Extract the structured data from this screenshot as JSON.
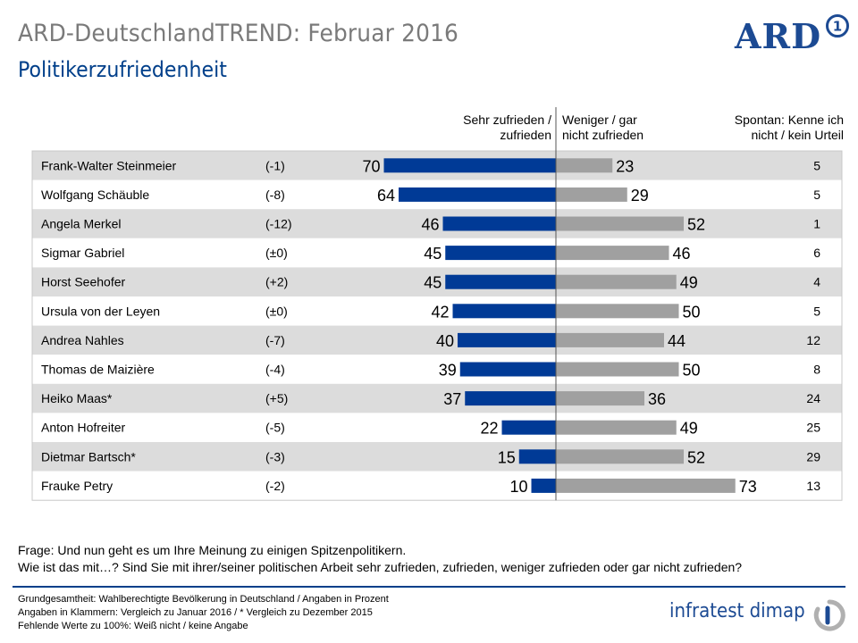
{
  "header": {
    "title": "ARD-DeutschlandTREND: Februar 2016",
    "subtitle": "Politikerzufriedenheit",
    "logo_text": "ARD",
    "logo_mark": "1"
  },
  "columns": {
    "positive": [
      "Sehr zufrieden /",
      "zufrieden"
    ],
    "negative": [
      "Weniger / gar",
      "nicht zufrieden"
    ],
    "unknown": [
      "Spontan: Kenne ich",
      "nicht / kein Urteil"
    ]
  },
  "colors": {
    "positive_bar": "#003a96",
    "negative_bar": "#a0a0a0",
    "row_shaded": "#dcdcdc",
    "row_plain": "#ffffff",
    "accent": "#003f8a"
  },
  "chart_data": {
    "type": "bar",
    "orientation": "horizontal-diverging",
    "categories": [
      "Frank-Walter Steinmeier",
      "Wolfgang Schäuble",
      "Angela Merkel",
      "Sigmar Gabriel",
      "Horst Seehofer",
      "Ursula von der Leyen",
      "Andrea Nahles",
      "Thomas de Maizière",
      "Heiko Maas*",
      "Anton Hofreiter",
      "Dietmar Bartsch*",
      "Frauke Petry"
    ],
    "changes": [
      "(-1)",
      "(-8)",
      "(-12)",
      "(±0)",
      "(+2)",
      "(±0)",
      "(-7)",
      "(-4)",
      "(+5)",
      "(-5)",
      "(-3)",
      "(-2)"
    ],
    "series": [
      {
        "name": "Sehr zufrieden / zufrieden",
        "values": [
          70,
          64,
          46,
          45,
          45,
          42,
          40,
          39,
          37,
          22,
          15,
          10
        ]
      },
      {
        "name": "Weniger / gar nicht zufrieden",
        "values": [
          23,
          29,
          52,
          46,
          49,
          50,
          44,
          50,
          36,
          49,
          52,
          73
        ]
      },
      {
        "name": "Spontan: Kenne ich nicht / kein Urteil",
        "values": [
          5,
          5,
          1,
          6,
          4,
          5,
          12,
          8,
          24,
          25,
          29,
          13
        ]
      }
    ]
  },
  "notes": {
    "question_1": "Frage: Und nun geht es um Ihre Meinung zu einigen Spitzenpolitikern.",
    "question_2": "Wie ist das mit…? Sind Sie mit ihrer/seiner politischen Arbeit sehr zufrieden, zufrieden,  weniger zufrieden oder gar nicht zufrieden?",
    "footer_1": "Grundgesamtheit:  Wahlberechtigte Bevölkerung  in Deutschland / Angaben in Prozent",
    "footer_2": "Angaben in Klammern:  Vergleich zu Januar 2016 / * Vergleich zu Dezember 2015",
    "footer_3": "Fehlende Werte zu 100%: Weiß nicht / keine Angabe"
  },
  "brand": {
    "institute": "infratest dimap"
  }
}
